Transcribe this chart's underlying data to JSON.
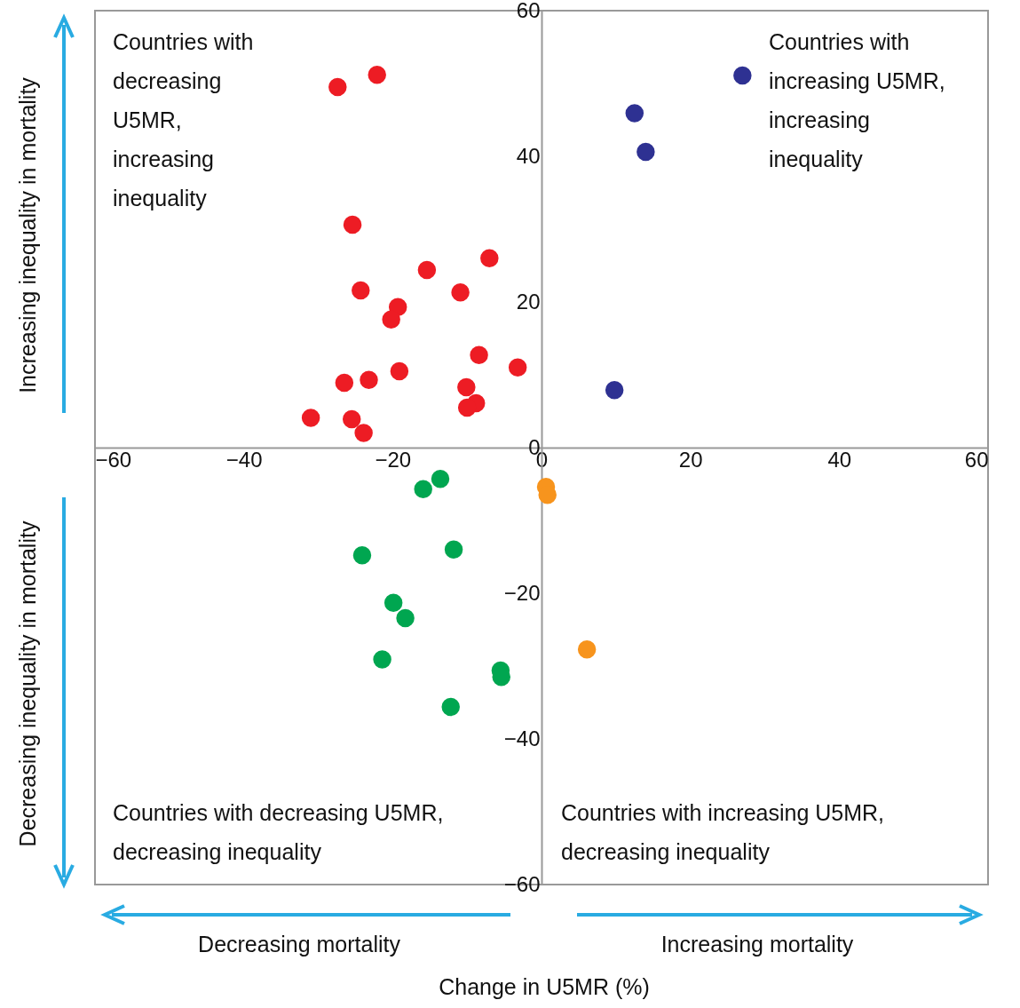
{
  "chart_data": {
    "type": "scatter",
    "xlabel": "Change in U5MR (%)",
    "xlim": [
      -60,
      60
    ],
    "ylim": [
      -60,
      60
    ],
    "xticks": [
      -60,
      -40,
      -20,
      0,
      20,
      40,
      60
    ],
    "yticks": [
      -60,
      -40,
      -20,
      0,
      20,
      40,
      60
    ],
    "grid": false,
    "marker": "circle",
    "annotations": [
      "Countries with\ndecreasing\nU5MR,\nincreasing\ninequality",
      "Countries with\nincreasing U5MR,\nincreasing\ninequality",
      "Countries with decreasing U5MR,\ndecreasing inequality",
      "Countries with increasing U5MR,\ndecreasing inequality",
      "Increasing inequality in mortality",
      "Decreasing inequality in mortality",
      "Decreasing mortality",
      "Increasing mortality"
    ],
    "series": [
      {
        "color": "#ed1c24",
        "x": [
          -27.4,
          -22.1,
          -25.4,
          -24.3,
          -15.4,
          -7.0,
          -10.9,
          -19.3,
          -20.2,
          -8.4,
          -3.2,
          -19.1,
          -23.2,
          -26.5,
          -10.1,
          -8.8,
          -10.0,
          -31.0,
          -25.5,
          -23.9
        ],
        "values": [
          49.5,
          51.2,
          30.6,
          21.6,
          24.4,
          26.0,
          21.3,
          19.3,
          17.6,
          12.7,
          11.0,
          10.5,
          9.3,
          8.9,
          8.3,
          6.1,
          5.5,
          4.1,
          3.9,
          2.0
        ]
      },
      {
        "color": "#2e3192",
        "x": [
          27.0,
          12.5,
          14.0,
          9.8
        ],
        "values": [
          51.1,
          45.9,
          40.6,
          7.9
        ]
      },
      {
        "color": "#00a650",
        "x": [
          -13.6,
          -15.9,
          -24.1,
          -11.8,
          -19.9,
          -18.3,
          -21.4,
          -5.5,
          -5.4,
          -12.2
        ],
        "values": [
          -4.3,
          -5.7,
          -14.8,
          -14.0,
          -21.3,
          -23.4,
          -29.1,
          -30.6,
          -31.5,
          -35.6
        ]
      },
      {
        "color": "#f7941d",
        "x": [
          0.6,
          0.8,
          6.1
        ],
        "values": [
          -5.4,
          -6.5,
          -27.7
        ]
      }
    ]
  }
}
